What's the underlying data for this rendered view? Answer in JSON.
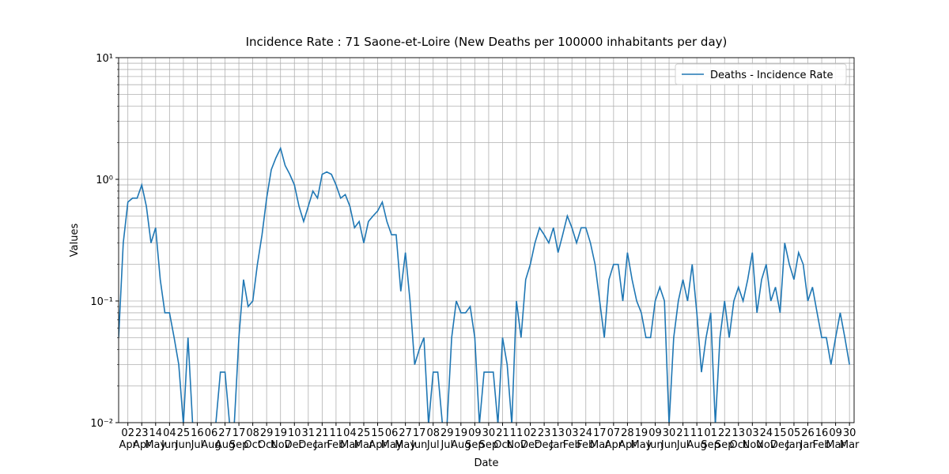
{
  "chart_data": {
    "type": "line",
    "title": "Incidence Rate : 71 Saone-et-Loire (New Deaths per 100000 inhabitants per day)",
    "xlabel": "Date",
    "ylabel": "Values",
    "log_y": true,
    "grid": true,
    "legend": "upper right",
    "series": [
      {
        "name": "Deaths - Incidence Rate",
        "color": "#1f77b4",
        "values": [
          0.05,
          0.3,
          0.65,
          0.7,
          0.7,
          0.9,
          0.6,
          0.3,
          0.4,
          0.15,
          0.08,
          0.08,
          0.05,
          0.03,
          0,
          0.05,
          0,
          0,
          0,
          0,
          0,
          0,
          0.026,
          0.026,
          0,
          0,
          0.05,
          0.15,
          0.09,
          0.1,
          0.2,
          0.35,
          0.7,
          1.2,
          1.5,
          1.8,
          1.3,
          1.1,
          0.9,
          0.6,
          0.45,
          0.6,
          0.8,
          0.7,
          1.1,
          1.15,
          1.1,
          0.9,
          0.7,
          0.75,
          0.6,
          0.4,
          0.45,
          0.3,
          0.45,
          0.5,
          0.55,
          0.65,
          0.45,
          0.35,
          0.35,
          0.12,
          0.25,
          0.1,
          0.03,
          0.04,
          0.05,
          0,
          0.026,
          0.026,
          0,
          0,
          0.05,
          0.1,
          0.08,
          0.08,
          0.09,
          0.05,
          0,
          0.026,
          0.026,
          0.026,
          0,
          0.05,
          0.03,
          0,
          0.1,
          0.05,
          0.15,
          0.2,
          0.3,
          0.4,
          0.35,
          0.3,
          0.4,
          0.25,
          0.35,
          0.5,
          0.4,
          0.3,
          0.4,
          0.4,
          0.3,
          0.2,
          0.1,
          0.05,
          0.15,
          0.2,
          0.2,
          0.1,
          0.25,
          0.15,
          0.1,
          0.08,
          0.05,
          0.05,
          0.1,
          0.13,
          0.1,
          0,
          0.05,
          0.1,
          0.15,
          0.1,
          0.2,
          0.08,
          0.026,
          0.05,
          0.08,
          0,
          0.05,
          0.1,
          0.05,
          0.1,
          0.13,
          0.1,
          0.15,
          0.25,
          0.08,
          0.15,
          0.2,
          0.1,
          0.13,
          0.08,
          0.3,
          0.2,
          0.15,
          0.25,
          0.2,
          0.1,
          0.13,
          0.08,
          0.05,
          0.05,
          0.03,
          0.05,
          0.08,
          0.05,
          0.03
        ]
      }
    ],
    "xlim": [
      0,
      159
    ],
    "xticks": [
      {
        "value": 2,
        "label": "02 Apr"
      },
      {
        "value": 5,
        "label": "23 Apr"
      },
      {
        "value": 8,
        "label": "14 May"
      },
      {
        "value": 11,
        "label": "04 Jun"
      },
      {
        "value": 14,
        "label": "25 Jun"
      },
      {
        "value": 17,
        "label": "16 Jul"
      },
      {
        "value": 20,
        "label": "06 Aug"
      },
      {
        "value": 23,
        "label": "27 Aug"
      },
      {
        "value": 26,
        "label": "17 Sep"
      },
      {
        "value": 29,
        "label": "08 Oct"
      },
      {
        "value": 32,
        "label": "29 Oct"
      },
      {
        "value": 35,
        "label": "19 Nov"
      },
      {
        "value": 38,
        "label": "10 Dec"
      },
      {
        "value": 41,
        "label": "31 Dec"
      },
      {
        "value": 44,
        "label": "21 Jan"
      },
      {
        "value": 47,
        "label": "11 Feb"
      },
      {
        "value": 50,
        "label": "04 Mar"
      },
      {
        "value": 53,
        "label": "25 Mar"
      },
      {
        "value": 56,
        "label": "15 Apr"
      },
      {
        "value": 59,
        "label": "06 May"
      },
      {
        "value": 62,
        "label": "27 May"
      },
      {
        "value": 65,
        "label": "17 Jun"
      },
      {
        "value": 68,
        "label": "08 Jul"
      },
      {
        "value": 71,
        "label": "29 Jul"
      },
      {
        "value": 74,
        "label": "19 Aug"
      },
      {
        "value": 77,
        "label": "09 Sep"
      },
      {
        "value": 80,
        "label": "30 Sep"
      },
      {
        "value": 83,
        "label": "21 Oct"
      },
      {
        "value": 86,
        "label": "11 Nov"
      },
      {
        "value": 89,
        "label": "02 Dec"
      },
      {
        "value": 92,
        "label": "23 Dec"
      },
      {
        "value": 95,
        "label": "13 Jan"
      },
      {
        "value": 98,
        "label": "03 Feb"
      },
      {
        "value": 101,
        "label": "24 Feb"
      },
      {
        "value": 104,
        "label": "17 Mar"
      },
      {
        "value": 107,
        "label": "07 Apr"
      },
      {
        "value": 110,
        "label": "28 Apr"
      },
      {
        "value": 113,
        "label": "19 May"
      },
      {
        "value": 116,
        "label": "09 Jun"
      },
      {
        "value": 119,
        "label": "30 Jun"
      },
      {
        "value": 122,
        "label": "21 Jul"
      },
      {
        "value": 125,
        "label": "11 Aug"
      },
      {
        "value": 128,
        "label": "01 Sep"
      },
      {
        "value": 131,
        "label": "22 Sep"
      },
      {
        "value": 134,
        "label": "13 Oct"
      },
      {
        "value": 137,
        "label": "03 Nov"
      },
      {
        "value": 140,
        "label": "24 Nov"
      },
      {
        "value": 143,
        "label": "15 Dec"
      },
      {
        "value": 146,
        "label": "05 Jan"
      },
      {
        "value": 149,
        "label": "26 Jan"
      },
      {
        "value": 152,
        "label": "16 Feb"
      },
      {
        "value": 155,
        "label": "09 Mar"
      },
      {
        "value": 158,
        "label": "30 Mar"
      }
    ],
    "ylim": [
      0.01,
      10
    ],
    "yticks": [
      {
        "value": 0.01,
        "label": "10⁻²"
      },
      {
        "value": 0.1,
        "label": "10⁻¹"
      },
      {
        "value": 1,
        "label": "10⁰"
      },
      {
        "value": 10,
        "label": "10¹"
      }
    ]
  }
}
